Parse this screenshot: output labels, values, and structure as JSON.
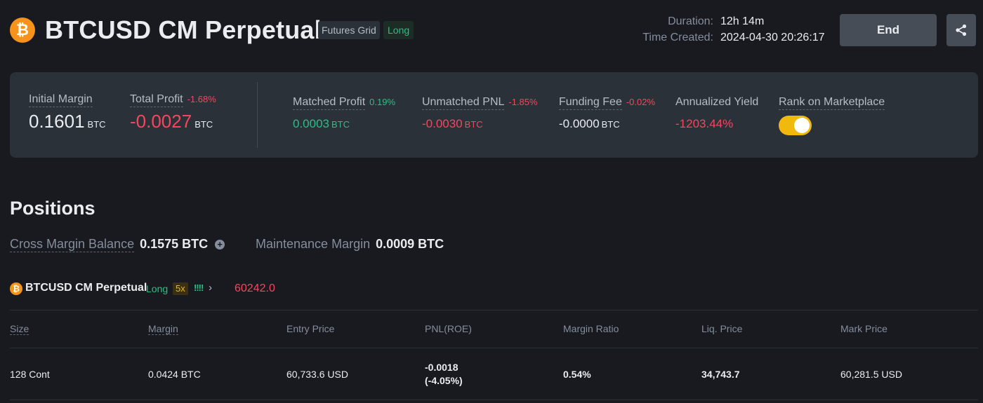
{
  "header": {
    "logo_glyph": "₿",
    "title": "BTCUSD CM Perpetual",
    "tag_strategy": "Futures Grid",
    "tag_direction": "Long",
    "duration_label": "Duration:",
    "duration_value": "12h 14m",
    "created_label": "Time Created:",
    "created_value": "2024-04-30 20:26:17",
    "end_label": "End",
    "share_icon": "share-icon"
  },
  "summary": {
    "initial_margin_label": "Initial Margin",
    "initial_margin_value": "0.1601",
    "initial_margin_unit": "BTC",
    "total_profit_label": "Total Profit",
    "total_profit_pct": "-1.68%",
    "total_profit_value": "-0.0027",
    "total_profit_unit": "BTC",
    "matched_profit_label": "Matched Profit",
    "matched_profit_pct": "0.19%",
    "matched_profit_value": "0.0003",
    "matched_profit_unit": "BTC",
    "unmatched_pnl_label": "Unmatched PNL",
    "unmatched_pnl_pct": "-1.85%",
    "unmatched_pnl_value": "-0.0030",
    "unmatched_pnl_unit": "BTC",
    "funding_fee_label": "Funding Fee",
    "funding_fee_pct": "-0.02%",
    "funding_fee_value": "-0.0000",
    "funding_fee_unit": "BTC",
    "annualized_yield_label": "Annualized Yield",
    "annualized_yield_value": "-1203.44%",
    "rank_label": "Rank on Marketplace",
    "rank_toggle_on": true
  },
  "positions": {
    "title": "Positions",
    "cross_margin_label": "Cross Margin Balance",
    "cross_margin_value": "0.1575 BTC",
    "maintenance_label": "Maintenance Margin",
    "maintenance_value": "0.0009 BTC",
    "symbol": {
      "logo_glyph": "₿",
      "name": "BTCUSD CM Perpetual",
      "direction": "Long",
      "leverage": "5x",
      "bars": "!!!!",
      "arrow": "›",
      "price": "60242.0"
    },
    "columns": [
      "Size",
      "Margin",
      "Entry Price",
      "PNL(ROE)",
      "Margin Ratio",
      "Liq. Price",
      "Mark Price"
    ],
    "row": {
      "size": "128 Cont",
      "margin": "0.0424 BTC",
      "entry_price": "60,733.6 USD",
      "pnl": "-0.0018",
      "roe": "(-4.05%)",
      "margin_ratio": "0.54%",
      "liq_price": "34,743.7",
      "mark_price": "60,281.5 USD"
    }
  },
  "colors": {
    "background": "#181a20",
    "card": "#2b3139",
    "profit": "#2ebd85",
    "loss": "#f6465d",
    "accent": "#f0b90b",
    "liq": "#f0884a"
  }
}
